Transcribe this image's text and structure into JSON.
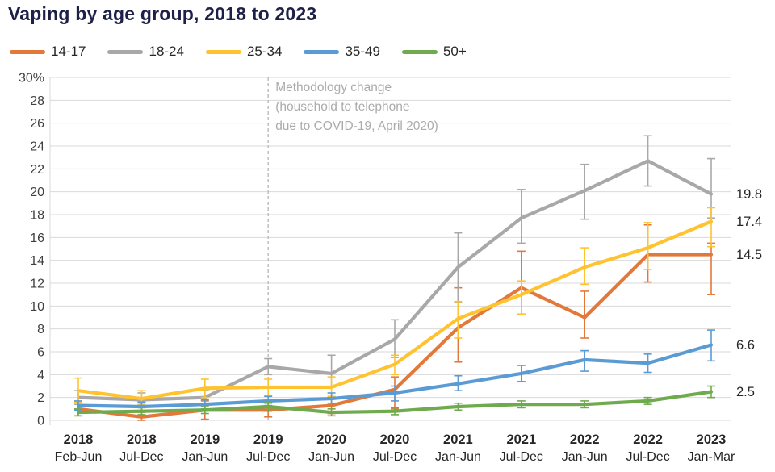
{
  "chart_data": {
    "type": "line",
    "title": "Vaping by age group, 2018 to 2023",
    "ylabel": "",
    "xlabel": "",
    "ylim": [
      0,
      30
    ],
    "y_tick_step": 2,
    "y_top_tick_label": "30%",
    "grid": true,
    "legend_position": "top",
    "categories": [
      {
        "year": "2018",
        "period": "Feb-Jun"
      },
      {
        "year": "2018",
        "period": "Jul-Dec"
      },
      {
        "year": "2019",
        "period": "Jan-Jun"
      },
      {
        "year": "2019",
        "period": "Jul-Dec"
      },
      {
        "year": "2020",
        "period": "Jan-Jun"
      },
      {
        "year": "2020",
        "period": "Jul-Dec"
      },
      {
        "year": "2021",
        "period": "Jan-Jun"
      },
      {
        "year": "2021",
        "period": "Jul-Dec"
      },
      {
        "year": "2022",
        "period": "Jan-Jun"
      },
      {
        "year": "2022",
        "period": "Jul-Dec"
      },
      {
        "year": "2023",
        "period": "Jan-Mar"
      }
    ],
    "series": [
      {
        "name": "14-17",
        "color": "#E2793B",
        "end_label": "14.5",
        "values": [
          1.0,
          0.3,
          0.9,
          0.9,
          1.3,
          2.7,
          8.1,
          11.6,
          9.0,
          14.5,
          14.5
        ],
        "err_lo": [
          0.6,
          0.3,
          0.8,
          0.6,
          0.7,
          1.7,
          3.0,
          2.3,
          1.8,
          2.4,
          3.5
        ],
        "err_hi": [
          0.6,
          0.4,
          0.8,
          0.6,
          0.7,
          1.1,
          3.5,
          3.2,
          2.3,
          2.6,
          1.0
        ]
      },
      {
        "name": "18-24",
        "color": "#A8A8A8",
        "end_label": "19.8",
        "values": [
          2.0,
          1.8,
          2.0,
          4.7,
          4.1,
          7.1,
          13.4,
          17.7,
          20.1,
          22.7,
          19.8
        ],
        "err_lo": [
          0.6,
          0.5,
          0.5,
          0.7,
          1.2,
          1.6,
          3.1,
          2.2,
          2.5,
          2.2,
          2.1
        ],
        "err_hi": [
          0.6,
          0.6,
          0.6,
          0.7,
          1.6,
          1.7,
          3.0,
          2.5,
          2.3,
          2.2,
          3.1
        ]
      },
      {
        "name": "25-34",
        "color": "#FFC330",
        "end_label": "17.4",
        "values": [
          2.6,
          1.9,
          2.8,
          2.9,
          2.9,
          4.9,
          8.9,
          11.0,
          13.4,
          15.1,
          17.4
        ],
        "err_lo": [
          1.0,
          0.5,
          0.8,
          0.7,
          0.8,
          0.9,
          1.7,
          1.7,
          1.5,
          1.9,
          2.2
        ],
        "err_hi": [
          1.1,
          0.7,
          0.8,
          0.7,
          0.9,
          0.8,
          1.5,
          1.2,
          1.7,
          2.2,
          1.2
        ]
      },
      {
        "name": "35-49",
        "color": "#5B9BD5",
        "end_label": "6.6",
        "values": [
          1.3,
          1.2,
          1.4,
          1.7,
          1.9,
          2.4,
          3.2,
          4.1,
          5.3,
          5.0,
          6.6
        ],
        "err_lo": [
          0.4,
          0.4,
          0.4,
          0.4,
          0.4,
          0.7,
          0.6,
          0.7,
          1.0,
          0.8,
          1.4
        ],
        "err_hi": [
          0.4,
          0.4,
          0.4,
          0.4,
          0.5,
          0.6,
          0.7,
          0.7,
          0.8,
          0.8,
          1.3
        ]
      },
      {
        "name": "50+",
        "color": "#6FAB4E",
        "end_label": "2.5",
        "values": [
          0.7,
          0.8,
          0.9,
          1.2,
          0.7,
          0.8,
          1.2,
          1.4,
          1.4,
          1.7,
          2.5
        ],
        "err_lo": [
          0.3,
          0.3,
          0.3,
          0.4,
          0.3,
          0.3,
          0.3,
          0.3,
          0.3,
          0.3,
          0.5
        ],
        "err_hi": [
          0.3,
          0.3,
          0.3,
          0.4,
          0.3,
          0.3,
          0.3,
          0.3,
          0.3,
          0.3,
          0.5
        ]
      }
    ],
    "annotation": {
      "at_category_index": 3,
      "lines": [
        "Methodology change",
        "(household to telephone",
        "due to COVID-19, April 2020)"
      ]
    },
    "colors": {
      "title_text": "#1e2147",
      "axis_text": "#3f3f3f",
      "x_label_text": "#262626",
      "end_label_text": "#262626",
      "gridline": "#D9D9D9",
      "annotation_line": "#BFBFBF",
      "annotation_text": "#ABABAB"
    }
  }
}
